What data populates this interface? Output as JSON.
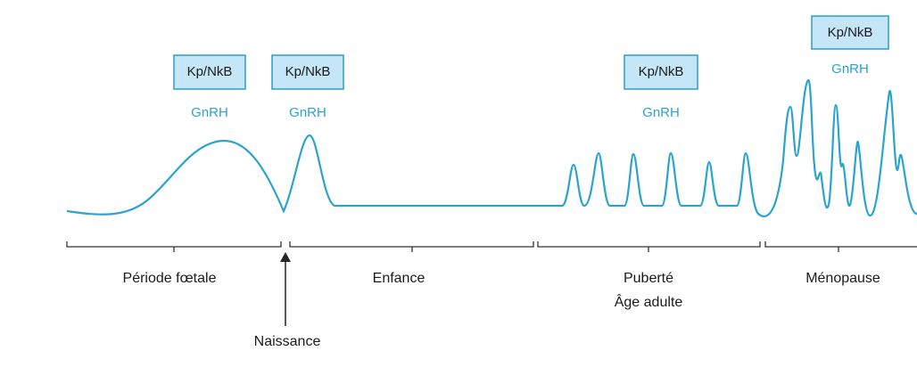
{
  "hormones": [
    {
      "box": "Kp/NkB",
      "label": "GnRH"
    },
    {
      "box": "Kp/NkB",
      "label": "GnRH"
    },
    {
      "box": "Kp/NkB",
      "label": "GnRH"
    },
    {
      "box": "Kp/NkB",
      "label": "GnRH"
    }
  ],
  "periods": [
    "Période fœtale",
    "Enfance",
    "Puberté",
    "Âge adulte",
    "Ménopause"
  ],
  "marker": "Naissance"
}
